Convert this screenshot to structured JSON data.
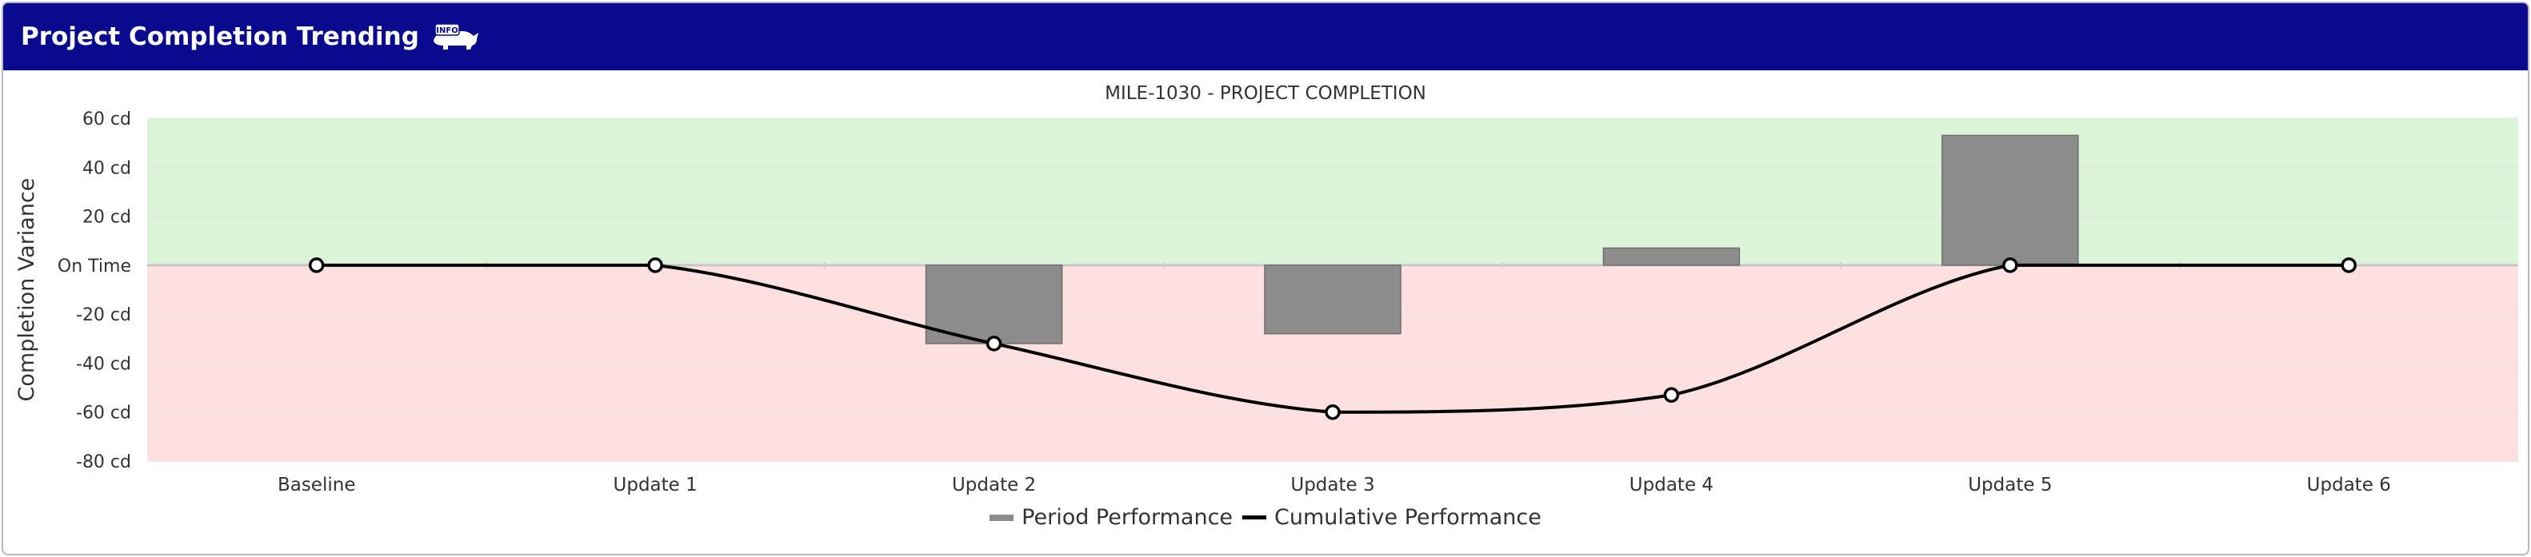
{
  "header": {
    "title": "Project Completion Trending",
    "badge_text": "INFO",
    "badge_icon": "rhino-icon"
  },
  "colors": {
    "header_bg": "#0a0a8f",
    "positive_band": "#dcf5da",
    "negative_band": "#fde0df",
    "bar": "#8c8c8c",
    "line": "#000000"
  },
  "chart_data": {
    "type": "bar+line",
    "title": "MILE-1030 - PROJECT COMPLETION",
    "ylabel": "Completion Variance",
    "xlabel": "",
    "ylim": [
      -80,
      60
    ],
    "yticks": [
      {
        "value": 60,
        "label": "60 cd"
      },
      {
        "value": 40,
        "label": "40 cd"
      },
      {
        "value": 20,
        "label": "20 cd"
      },
      {
        "value": 0,
        "label": "On Time"
      },
      {
        "value": -20,
        "label": "-20 cd"
      },
      {
        "value": -40,
        "label": "-40 cd"
      },
      {
        "value": -60,
        "label": "-60 cd"
      },
      {
        "value": -80,
        "label": "-80 cd"
      }
    ],
    "categories": [
      "Baseline",
      "Update 1",
      "Update 2",
      "Update 3",
      "Update 4",
      "Update 5",
      "Update 6"
    ],
    "series": [
      {
        "name": "Period Performance",
        "type": "bar",
        "values": [
          0,
          0,
          -32,
          -28,
          7,
          53,
          0
        ]
      },
      {
        "name": "Cumulative Performance",
        "type": "line",
        "values": [
          0,
          0,
          -32,
          -60,
          -53,
          0,
          0
        ]
      }
    ],
    "legend": "bottom-center",
    "grid": true
  }
}
